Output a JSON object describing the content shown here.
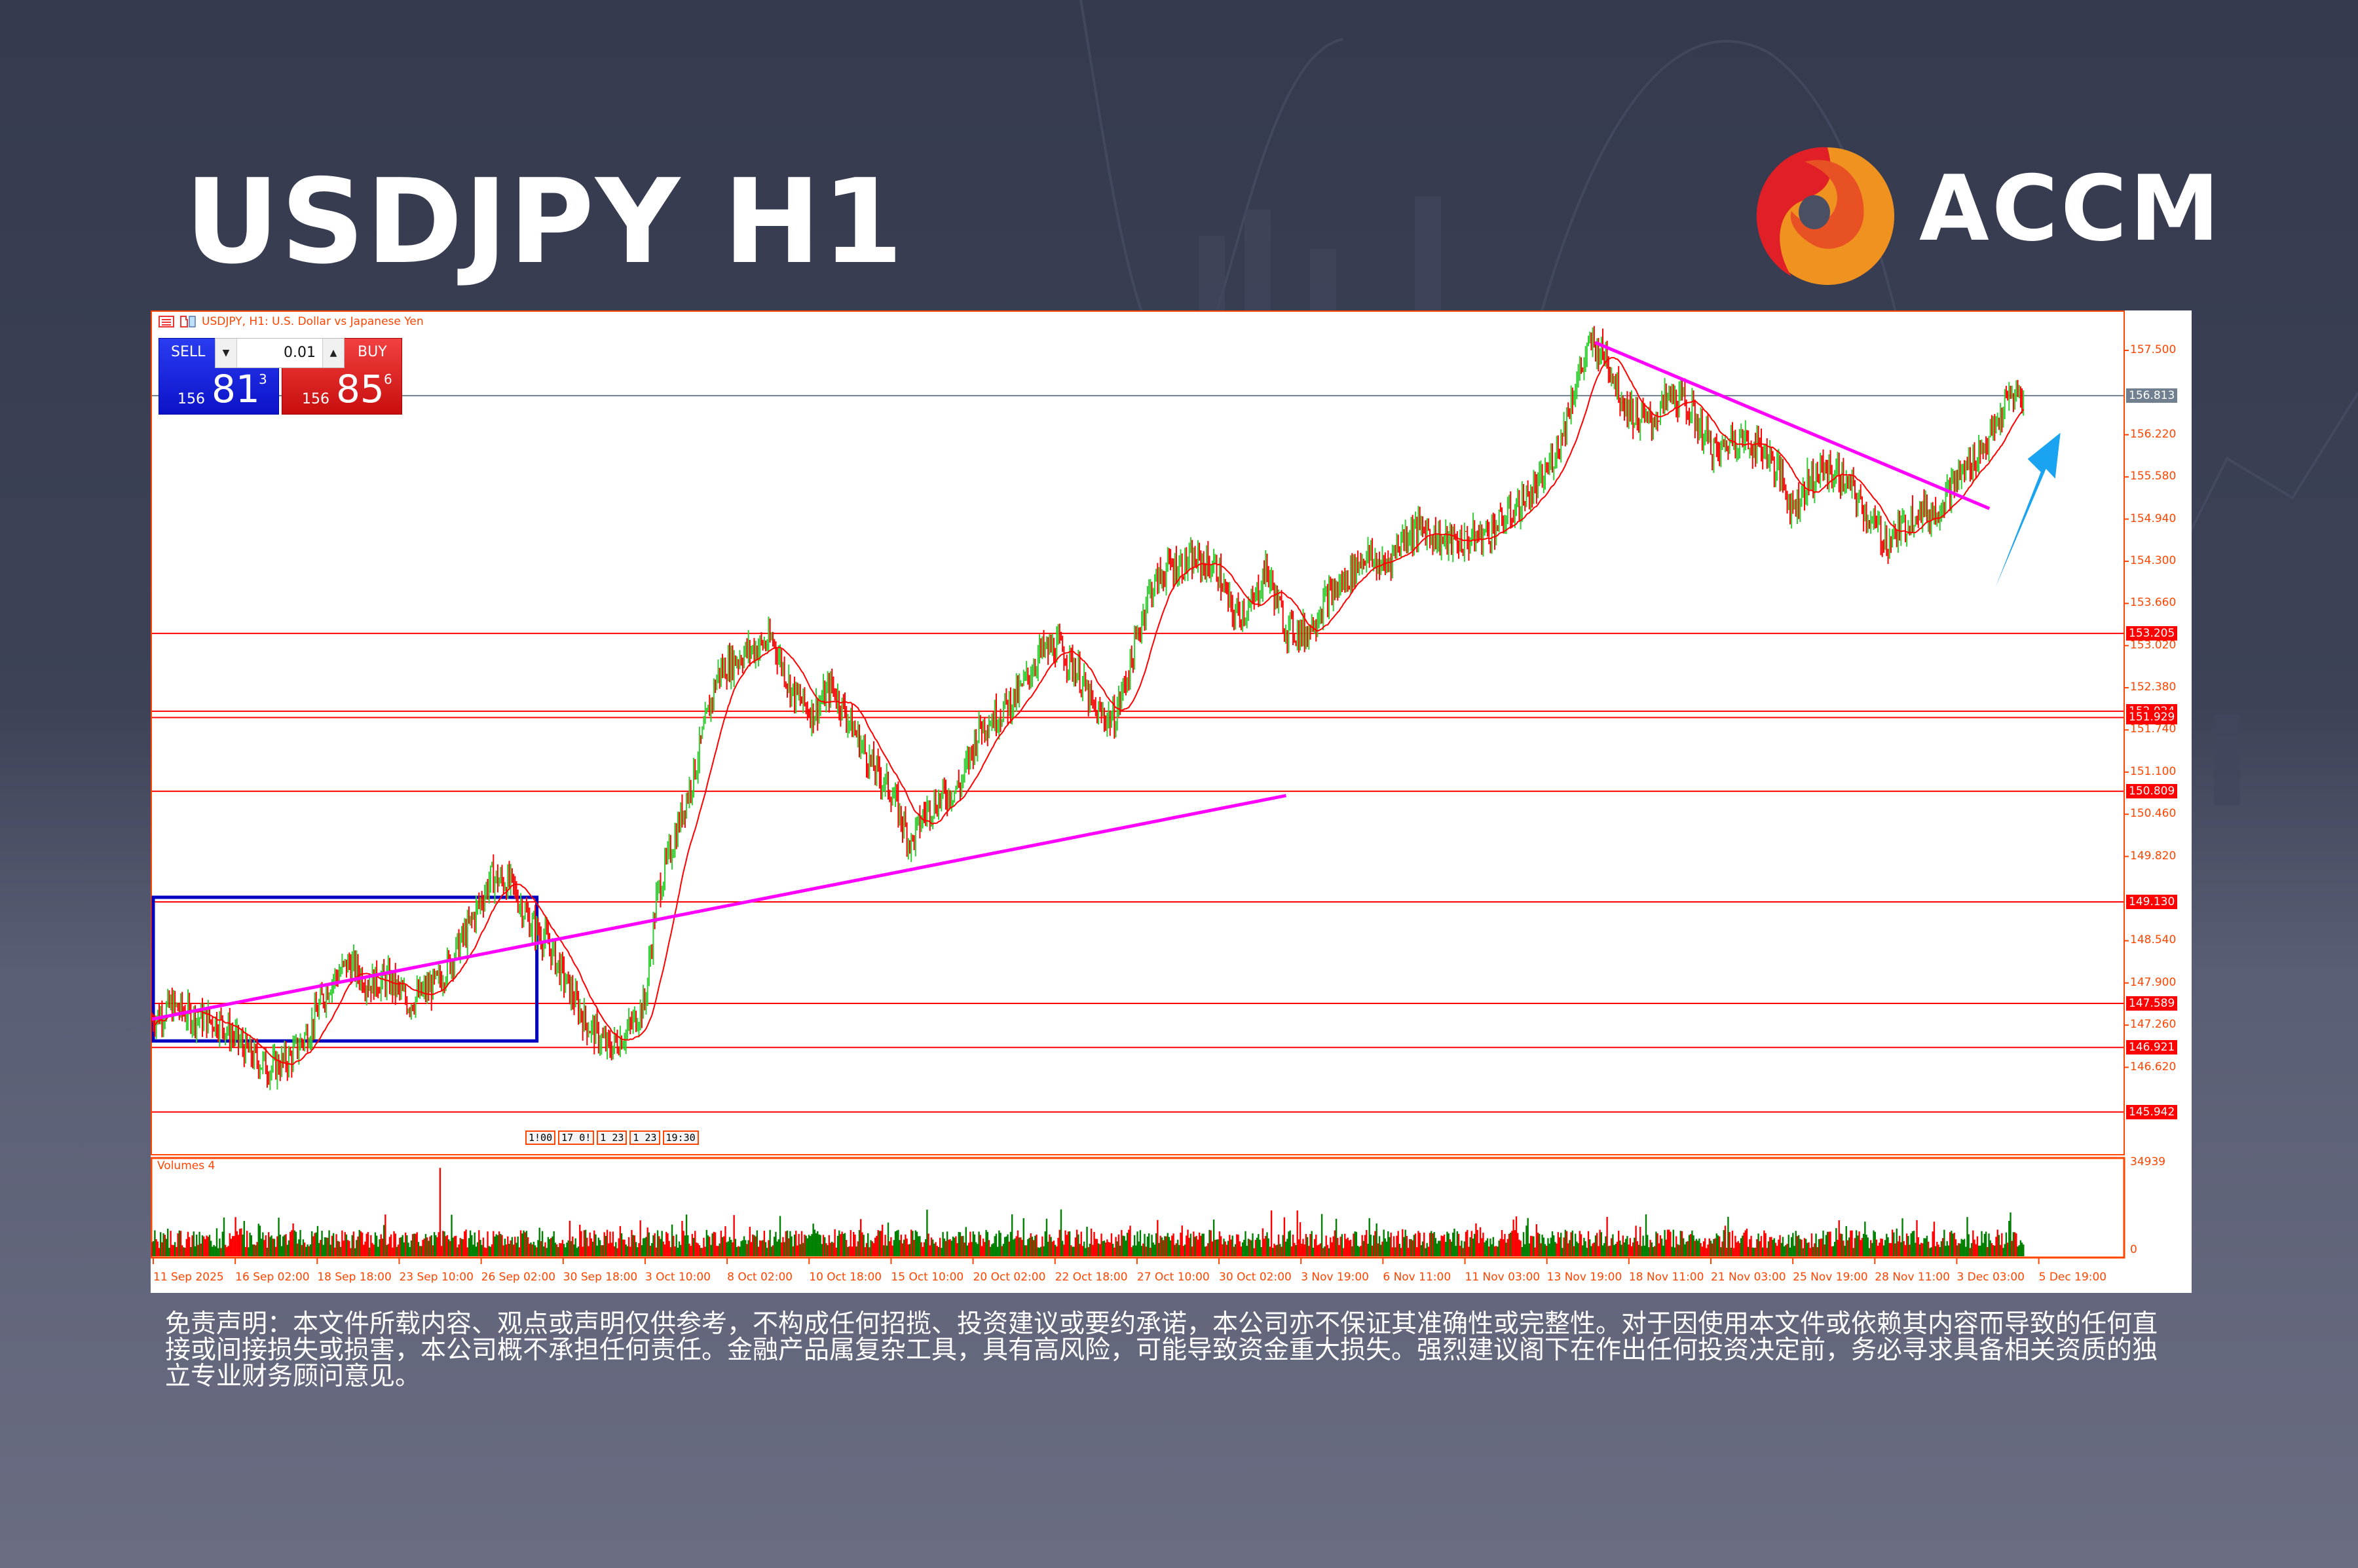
{
  "title": "USDJPY H1",
  "brand": {
    "name": "ACCM",
    "colors": {
      "red": "#e11f26",
      "orange_red": "#e85124",
      "orange": "#f0921f"
    }
  },
  "chart_header": {
    "symbol_text": "USDJPY, H1:  U.S. Dollar vs Japanese Yen"
  },
  "trade_panel": {
    "sell": {
      "label": "SELL",
      "prefix": "156",
      "big": "81",
      "sup": "3"
    },
    "buy": {
      "label": "BUY",
      "prefix": "156",
      "big": "85",
      "sup": "6"
    },
    "lot": {
      "value": "0.01",
      "down_icon": "▼",
      "up_icon": "▲"
    }
  },
  "volume_label": "Volumes 4",
  "time_tags": [
    "1!00",
    "17 0!",
    "1 23",
    "1 23",
    "19:30"
  ],
  "disclaimer": "免责声明：本文件所载内容、观点或声明仅供参考，不构成任何招揽、投资建议或要约承诺，本公司亦不保证其准确性或完整性。对于因使用本文件或依赖其内容而导致的任何直接或间接损失或损害，本公司概不承担任何责任。金融产品属复杂工具，具有高风险，可能导致资金重大损失。强烈建议阁下在作出任何投资决定前，务必寻求具备相关资质的独立专业财务顾问意见。",
  "chart_data": {
    "type": "candlestick",
    "title": "USDJPY, H1: U.S. Dollar vs Japanese Yen",
    "timeframe": "H1",
    "current_price": 156.813,
    "bid": 156.813,
    "ask": 156.856,
    "y_ticks": [
      157.5,
      156.22,
      155.58,
      154.94,
      154.3,
      153.66,
      153.02,
      152.38,
      151.74,
      151.1,
      150.46,
      149.82,
      148.54,
      147.9,
      147.26,
      146.62
    ],
    "ylim": [
      145.5,
      158.0
    ],
    "x_ticks": [
      "11 Sep 2025",
      "16 Sep 02:00",
      "18 Sep 18:00",
      "23 Sep 10:00",
      "26 Sep 02:00",
      "30 Sep 18:00",
      "3 Oct 10:00",
      "8 Oct 02:00",
      "10 Oct 18:00",
      "15 Oct 10:00",
      "20 Oct 02:00",
      "22 Oct 18:00",
      "27 Oct 10:00",
      "30 Oct 02:00",
      "3 Nov 19:00",
      "6 Nov 11:00",
      "11 Nov 03:00",
      "13 Nov 19:00",
      "18 Nov 11:00",
      "21 Nov 03:00",
      "25 Nov 19:00",
      "28 Nov 11:00",
      "3 Dec 03:00",
      "5 Dec 19:00"
    ],
    "horizontal_levels": [
      153.205,
      152.024,
      151.929,
      150.809,
      149.13,
      147.589,
      146.921,
      145.942
    ],
    "price_path": [
      {
        "x": 0.0,
        "p": 147.35
      },
      {
        "x": 0.01,
        "p": 147.55
      },
      {
        "x": 0.02,
        "p": 147.4
      },
      {
        "x": 0.035,
        "p": 147.3
      },
      {
        "x": 0.05,
        "p": 146.8
      },
      {
        "x": 0.06,
        "p": 146.6
      },
      {
        "x": 0.07,
        "p": 146.75
      },
      {
        "x": 0.08,
        "p": 147.2
      },
      {
        "x": 0.09,
        "p": 147.9
      },
      {
        "x": 0.1,
        "p": 148.2
      },
      {
        "x": 0.11,
        "p": 147.9
      },
      {
        "x": 0.12,
        "p": 147.95
      },
      {
        "x": 0.13,
        "p": 147.6
      },
      {
        "x": 0.145,
        "p": 147.9
      },
      {
        "x": 0.16,
        "p": 148.7
      },
      {
        "x": 0.172,
        "p": 149.5
      },
      {
        "x": 0.182,
        "p": 149.4
      },
      {
        "x": 0.192,
        "p": 148.8
      },
      {
        "x": 0.2,
        "p": 148.55
      },
      {
        "x": 0.21,
        "p": 147.9
      },
      {
        "x": 0.22,
        "p": 147.3
      },
      {
        "x": 0.232,
        "p": 146.9
      },
      {
        "x": 0.242,
        "p": 147.2
      },
      {
        "x": 0.25,
        "p": 147.6
      },
      {
        "x": 0.256,
        "p": 149.2
      },
      {
        "x": 0.265,
        "p": 150.1
      },
      {
        "x": 0.275,
        "p": 151.1
      },
      {
        "x": 0.287,
        "p": 152.6
      },
      {
        "x": 0.3,
        "p": 152.9
      },
      {
        "x": 0.315,
        "p": 153.1
      },
      {
        "x": 0.325,
        "p": 152.3
      },
      {
        "x": 0.335,
        "p": 152.0
      },
      {
        "x": 0.345,
        "p": 152.4
      },
      {
        "x": 0.355,
        "p": 151.8
      },
      {
        "x": 0.365,
        "p": 151.2
      },
      {
        "x": 0.375,
        "p": 150.8
      },
      {
        "x": 0.385,
        "p": 150.0
      },
      {
        "x": 0.392,
        "p": 150.5
      },
      {
        "x": 0.4,
        "p": 150.7
      },
      {
        "x": 0.41,
        "p": 150.9
      },
      {
        "x": 0.42,
        "p": 151.8
      },
      {
        "x": 0.43,
        "p": 152.0
      },
      {
        "x": 0.44,
        "p": 152.3
      },
      {
        "x": 0.45,
        "p": 152.9
      },
      {
        "x": 0.46,
        "p": 153.0
      },
      {
        "x": 0.47,
        "p": 152.6
      },
      {
        "x": 0.478,
        "p": 152.0
      },
      {
        "x": 0.488,
        "p": 151.9
      },
      {
        "x": 0.497,
        "p": 152.8
      },
      {
        "x": 0.505,
        "p": 153.8
      },
      {
        "x": 0.515,
        "p": 154.2
      },
      {
        "x": 0.53,
        "p": 154.3
      },
      {
        "x": 0.54,
        "p": 154.2
      },
      {
        "x": 0.548,
        "p": 153.5
      },
      {
        "x": 0.558,
        "p": 153.6
      },
      {
        "x": 0.565,
        "p": 154.2
      },
      {
        "x": 0.575,
        "p": 153.3
      },
      {
        "x": 0.585,
        "p": 153.2
      },
      {
        "x": 0.595,
        "p": 153.7
      },
      {
        "x": 0.605,
        "p": 154.0
      },
      {
        "x": 0.615,
        "p": 154.4
      },
      {
        "x": 0.625,
        "p": 154.2
      },
      {
        "x": 0.635,
        "p": 154.7
      },
      {
        "x": 0.645,
        "p": 154.8
      },
      {
        "x": 0.655,
        "p": 154.6
      },
      {
        "x": 0.665,
        "p": 154.6
      },
      {
        "x": 0.675,
        "p": 154.7
      },
      {
        "x": 0.685,
        "p": 154.9
      },
      {
        "x": 0.695,
        "p": 155.2
      },
      {
        "x": 0.705,
        "p": 155.5
      },
      {
        "x": 0.715,
        "p": 156.2
      },
      {
        "x": 0.722,
        "p": 157.0
      },
      {
        "x": 0.73,
        "p": 157.6
      },
      {
        "x": 0.738,
        "p": 157.4
      },
      {
        "x": 0.745,
        "p": 156.8
      },
      {
        "x": 0.752,
        "p": 156.5
      },
      {
        "x": 0.76,
        "p": 156.4
      },
      {
        "x": 0.77,
        "p": 156.8
      },
      {
        "x": 0.778,
        "p": 156.7
      },
      {
        "x": 0.786,
        "p": 156.3
      },
      {
        "x": 0.794,
        "p": 155.9
      },
      {
        "x": 0.802,
        "p": 156.2
      },
      {
        "x": 0.81,
        "p": 156.1
      },
      {
        "x": 0.818,
        "p": 156.0
      },
      {
        "x": 0.826,
        "p": 155.6
      },
      {
        "x": 0.832,
        "p": 155.1
      },
      {
        "x": 0.84,
        "p": 155.5
      },
      {
        "x": 0.848,
        "p": 155.7
      },
      {
        "x": 0.856,
        "p": 155.6
      },
      {
        "x": 0.864,
        "p": 155.3
      },
      {
        "x": 0.872,
        "p": 154.9
      },
      {
        "x": 0.88,
        "p": 154.6
      },
      {
        "x": 0.888,
        "p": 154.8
      },
      {
        "x": 0.895,
        "p": 155.1
      },
      {
        "x": 0.903,
        "p": 155.0
      },
      {
        "x": 0.912,
        "p": 155.4
      },
      {
        "x": 0.92,
        "p": 155.7
      },
      {
        "x": 0.928,
        "p": 156.0
      },
      {
        "x": 0.935,
        "p": 156.3
      },
      {
        "x": 0.942,
        "p": 156.8
      },
      {
        "x": 0.95,
        "p": 156.81
      }
    ],
    "moving_average": {
      "color": "#ff0000",
      "period_hint": "short SMA"
    },
    "trendlines": [
      {
        "color": "#ff00ff",
        "from": {
          "x": 0.0,
          "p": 147.35
        },
        "to": {
          "x": 0.243,
          "p": 149.75
        }
      },
      {
        "color": "#ff00ff",
        "from": {
          "x": 0.732,
          "p": 157.62
        },
        "to": {
          "x": 0.932,
          "p": 155.1
        }
      }
    ],
    "rectangle": {
      "color": "#0000c0",
      "x0": 0.0,
      "x1": 0.065,
      "p_top": 149.2,
      "p_bottom": 147.02
    },
    "arrow": {
      "color": "#1aa3f0",
      "from": {
        "x": 0.935,
        "p": 153.9
      },
      "to": {
        "x": 0.968,
        "p": 156.25
      }
    },
    "volume": {
      "label": "Volumes 4",
      "max": 34939,
      "min": 0,
      "colors": {
        "up": "#008000",
        "down": "#ff0000"
      }
    },
    "colors": {
      "bull": "#32cd32",
      "bear": "#ff0000",
      "axis": "#ff4500",
      "level": "#ff0000",
      "current": "#708090"
    }
  }
}
